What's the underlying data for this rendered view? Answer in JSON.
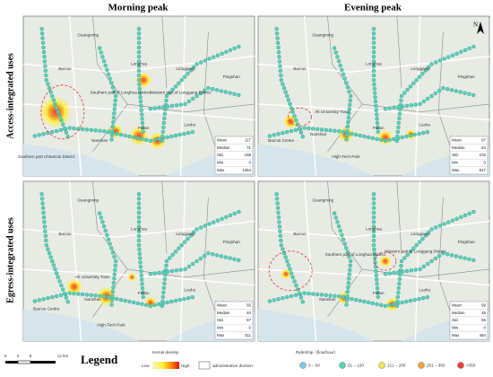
{
  "column_titles": [
    "Morning peak",
    "Evening peak"
  ],
  "row_titles": [
    "Access-integrated uses",
    "Egress-integrated uses"
  ],
  "north": "N",
  "panels": [
    {
      "labels": [
        "Guangming",
        "Longhua",
        "Bao'an",
        "Southern part of Longhua District",
        "Western part of Longgang District",
        "Longgang",
        "Pingshan",
        "Luohu",
        "Yantian",
        "Nanshan",
        "Futian",
        "Southern part of Bao'an District"
      ],
      "stats": [
        {
          "name": "Mean",
          "value": 117
        },
        {
          "name": "Median",
          "value": 71
        },
        {
          "name": "Std.",
          "value": 158
        },
        {
          "name": "Min",
          "value": 0
        },
        {
          "name": "Max",
          "value": 1464
        }
      ]
    },
    {
      "labels": [
        "Guangming",
        "Longhua",
        "Bao'an",
        "Longgang",
        "Pingshan",
        "Alt University Town",
        "Nanshan",
        "Futian",
        "Luohu",
        "Yantian",
        "Bao'an Centre",
        "High-Tech Park"
      ],
      "stats": [
        {
          "name": "Mean",
          "value": 97
        },
        {
          "name": "Median",
          "value": 64
        },
        {
          "name": "Std.",
          "value": 102
        },
        {
          "name": "Min",
          "value": 0
        },
        {
          "name": "Max",
          "value": 617
        }
      ]
    },
    {
      "labels": [
        "Guangming",
        "Longhua",
        "Bao'an",
        "Longgang",
        "Pingshan",
        "Alt University Town",
        "Nanshan",
        "Futian",
        "Luohu",
        "Yantian",
        "Bao'an Centre",
        "High-Tech Park"
      ],
      "stats": [
        {
          "name": "Mean",
          "value": 55
        },
        {
          "name": "Median",
          "value": 40
        },
        {
          "name": "Std.",
          "value": 57
        },
        {
          "name": "Min",
          "value": 0
        },
        {
          "name": "Max",
          "value": 311
        }
      ]
    },
    {
      "labels": [
        "Guangming",
        "Longhua",
        "Bao'an",
        "Longgang",
        "Pingshan",
        "Southern part of Longhua District",
        "Western part of Longgang District",
        "Nanshan",
        "Futian",
        "Luohu",
        "Yantian"
      ],
      "stats": [
        {
          "name": "Mean",
          "value": 59
        },
        {
          "name": "Median",
          "value": 45
        },
        {
          "name": "Std.",
          "value": 65
        },
        {
          "name": "Min",
          "value": 0
        },
        {
          "name": "Max",
          "value": 484
        }
      ]
    }
  ],
  "scale_bar": [
    "0",
    "3",
    "6",
    "12 km"
  ],
  "legend": {
    "title": "Legend",
    "kernel_density": {
      "title": "Kernel density",
      "low": "Low",
      "high": "High"
    },
    "admin": "administrative division",
    "ridership": {
      "title": "Ridership（flow/hour）",
      "classes": [
        {
          "label": "0 – 50",
          "color": "#7cc9e8"
        },
        {
          "label": "51 – 120",
          "color": "#5ccfb8"
        },
        {
          "label": "121 – 200",
          "color": "#f2e65a"
        },
        {
          "label": "201 – 350",
          "color": "#f2a33a"
        },
        {
          "label": ">350",
          "color": "#e8413a"
        }
      ]
    }
  }
}
